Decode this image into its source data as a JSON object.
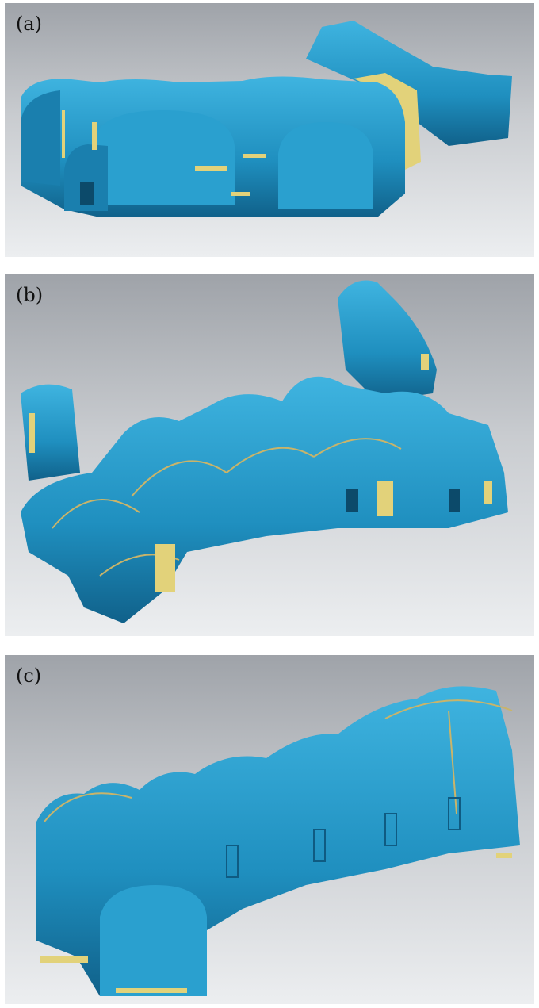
{
  "panels": [
    {
      "label": "(a)"
    },
    {
      "label": "(b)"
    },
    {
      "label": "(c)"
    }
  ],
  "colors": {
    "mesh_blue": "#1f8fbf",
    "mesh_dark": "#10618a",
    "mesh_light": "#3fb4e0",
    "hole_yellow": "#e2d27a",
    "background_top": "#9fa3a9",
    "background_bottom": "#eceef0"
  }
}
